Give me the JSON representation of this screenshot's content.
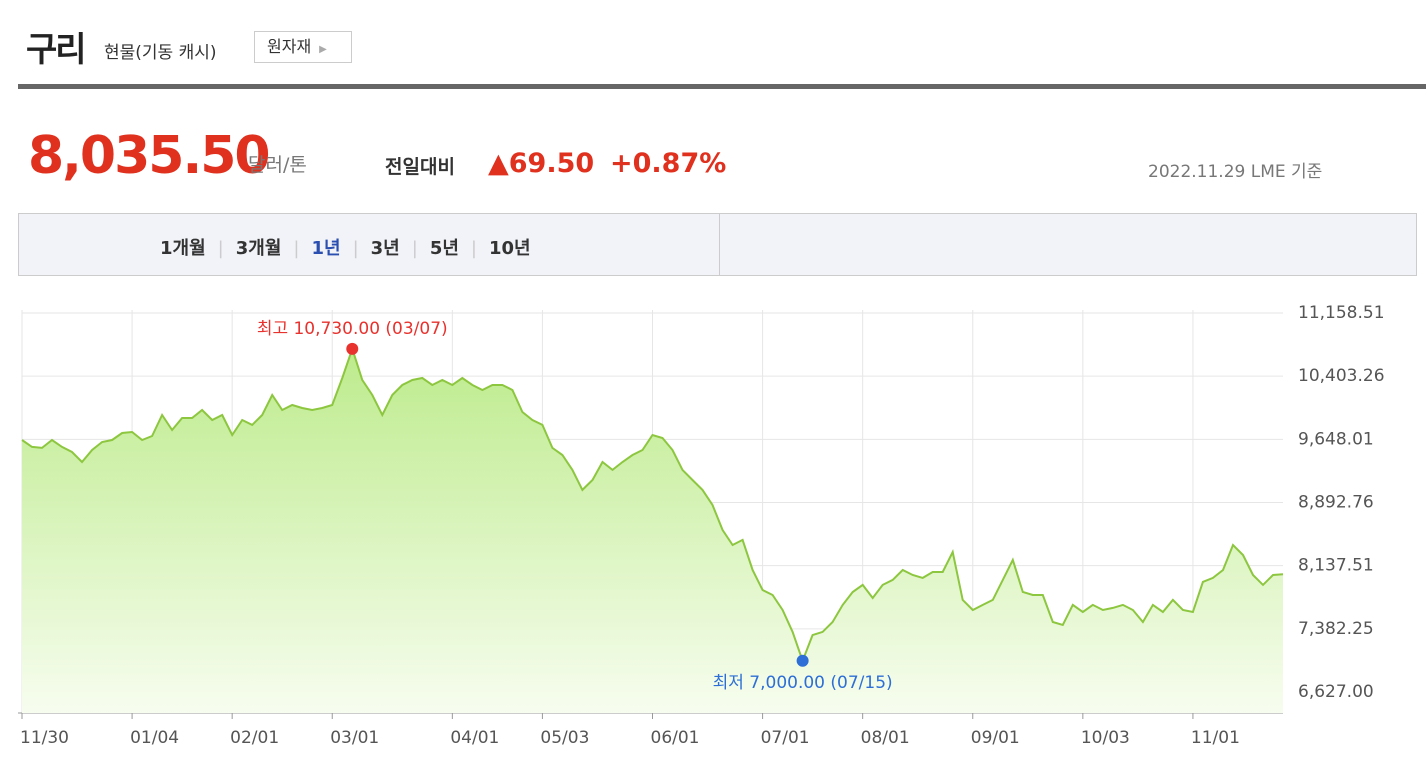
{
  "header": {
    "title": "구리",
    "subtitle": "현물(기동 캐시)",
    "button": "원자재"
  },
  "price": {
    "value": "8,035.50",
    "unit": "달러/톤",
    "change_label": "전일대비",
    "change": "▲69.50",
    "change_pct": "+0.87%",
    "date": "2022.11.29 LME 기준"
  },
  "tabs": [
    "1개월",
    "3개월",
    "1년",
    "3년",
    "5년",
    "10년"
  ],
  "active_tab": 2,
  "chart_data": {
    "type": "area",
    "color": "#8dc63f",
    "grid": true,
    "values": [
      9640,
      9557,
      9545,
      9640,
      9557,
      9497,
      9377,
      9521,
      9616,
      9640,
      9724,
      9736,
      9640,
      9688,
      9939,
      9760,
      9903,
      9903,
      9999,
      9879,
      9939,
      9700,
      9879,
      9820,
      9939,
      10178,
      9999,
      10059,
      10023,
      9999,
      10023,
      10059,
      10381,
      10730,
      10358,
      10178,
      9939,
      10178,
      10298,
      10358,
      10381,
      10298,
      10358,
      10298,
      10381,
      10298,
      10238,
      10298,
      10298,
      10238,
      9975,
      9879,
      9820,
      9545,
      9461,
      9282,
      9043,
      9162,
      9377,
      9282,
      9377,
      9461,
      9521,
      9700,
      9664,
      9521,
      9282,
      9162,
      9043,
      8863,
      8564,
      8385,
      8445,
      8086,
      7847,
      7787,
      7608,
      7345,
      7000,
      7309,
      7345,
      7464,
      7668,
      7823,
      7907,
      7751,
      7907,
      7967,
      8086,
      8026,
      7991,
      8062,
      8062,
      8301,
      7728,
      7608,
      7668,
      7728,
      7967,
      8206,
      7823,
      7787,
      7787,
      7464,
      7429,
      7668,
      7584,
      7668,
      7608,
      7632,
      7668,
      7608,
      7464,
      7668,
      7584,
      7728,
      7608,
      7584,
      7943,
      7991,
      8086,
      8385,
      8265,
      8026,
      7907,
      8026,
      8035.5
    ],
    "xlim": [
      0,
      126
    ],
    "xticks": [
      {
        "value": 0,
        "label": "11/30"
      },
      {
        "value": 11,
        "label": "01/04"
      },
      {
        "value": 21,
        "label": "02/01"
      },
      {
        "value": 31,
        "label": "03/01"
      },
      {
        "value": 43,
        "label": "04/01"
      },
      {
        "value": 52,
        "label": "05/03"
      },
      {
        "value": 63,
        "label": "06/01"
      },
      {
        "value": 74,
        "label": "07/01"
      },
      {
        "value": 84,
        "label": "08/01"
      },
      {
        "value": 95,
        "label": "09/01"
      },
      {
        "value": 106,
        "label": "10/03"
      },
      {
        "value": 117,
        "label": "11/01"
      }
    ],
    "ylim": [
      6627,
      11158.51
    ],
    "yticks": [
      {
        "value": 6627,
        "label": "6,627.00"
      },
      {
        "value": 7382.25,
        "label": "7,382.25"
      },
      {
        "value": 8137.51,
        "label": "8,137.51"
      },
      {
        "value": 8892.76,
        "label": "8,892.76"
      },
      {
        "value": 9648.01,
        "label": "9,648.01"
      },
      {
        "value": 10403.26,
        "label": "10,403.26"
      },
      {
        "value": 11158.51,
        "label": "11,158.51"
      }
    ],
    "high_label": "최고 10,730.00 (03/07)",
    "high_color": "#e8322d",
    "low_label": "최저 7,000.00 (07/15)",
    "low_color": "#2d6fd6"
  }
}
